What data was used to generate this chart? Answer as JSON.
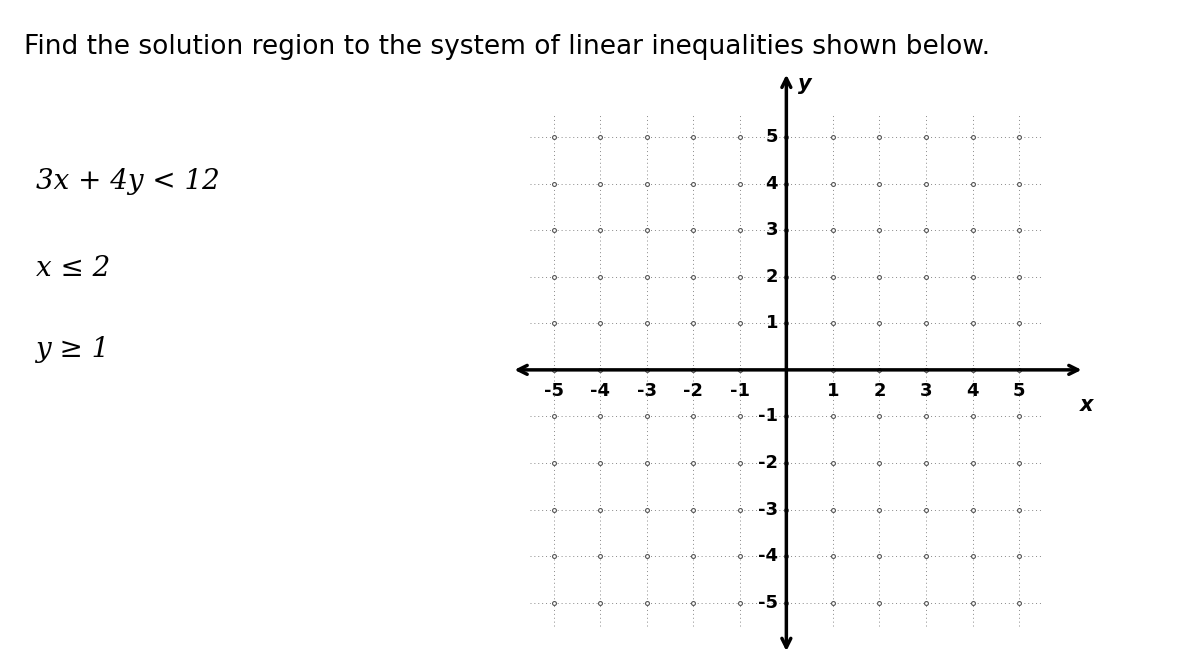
{
  "title": "Find the solution region to the system of linear inequalities shown below.",
  "inequalities": [
    "3x + 4y < 12",
    "x ≤ 2",
    "y ≥ 1"
  ],
  "xlim": [
    -6.0,
    6.5
  ],
  "ylim": [
    -6.2,
    6.5
  ],
  "grid_min": -5,
  "grid_max": 5,
  "xticks": [
    -5,
    -4,
    -3,
    -2,
    -1,
    1,
    2,
    3,
    4,
    5
  ],
  "yticks": [
    -5,
    -4,
    -3,
    -2,
    -1,
    1,
    2,
    3,
    4,
    5
  ],
  "xlabel": "x",
  "ylabel": "y",
  "bg_color": "#ffffff",
  "dot_color": "#555555",
  "dotted_color": "#888888",
  "axis_color": "#000000",
  "text_color": "#000000",
  "title_fontsize": 19,
  "inequality_fontsize": 20,
  "tick_fontsize": 13,
  "axis_label_fontsize": 15
}
